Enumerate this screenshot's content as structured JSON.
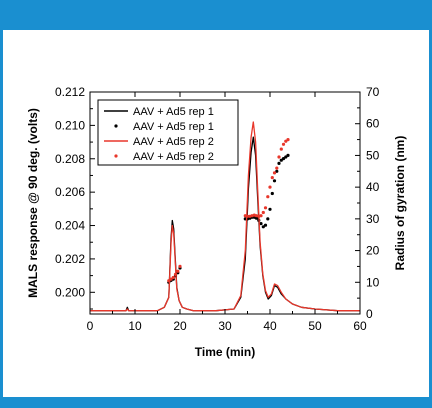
{
  "colors": {
    "frame_accent": "#1a8fd0",
    "rep1": "#000000",
    "rep2": "#e8372b"
  },
  "chart_data": {
    "type": "line",
    "xlabel": "Time (min)",
    "ylabel": "MALS response @ 90 deg. (volts)",
    "y2label": "Radius of gyration (nm)",
    "xlim": [
      0,
      60
    ],
    "ylim": [
      0.1987,
      0.212
    ],
    "y2lim": [
      0,
      70
    ],
    "xticks": [
      0,
      10,
      20,
      30,
      40,
      50,
      60
    ],
    "yticks": [
      0.2,
      0.202,
      0.204,
      0.206,
      0.208,
      0.21,
      0.212
    ],
    "ytick_labels": [
      "0.200",
      "0.202",
      "0.204",
      "0.206",
      "0.208",
      "0.210",
      "0.212"
    ],
    "y2ticks": [
      0,
      10,
      20,
      30,
      40,
      50,
      60,
      70
    ],
    "legend_position": "top-left",
    "series": [
      {
        "name": "AAV + Ad5 rep 1",
        "kind": "line",
        "axis": "left",
        "color": "#000000",
        "x": [
          0,
          5,
          8,
          8.3,
          8.6,
          10,
          15,
          16.5,
          17.5,
          18.0,
          18.3,
          18.6,
          18.9,
          19.3,
          19.8,
          20.5,
          21.5,
          23,
          28,
          32,
          33.5,
          34.5,
          35.2,
          35.8,
          36.3,
          36.8,
          37.3,
          37.8,
          38.4,
          39.0,
          39.6,
          40.3,
          41.0,
          41.7,
          42.5,
          43.5,
          45,
          47,
          50,
          55,
          60
        ],
        "y": [
          0.1989,
          0.1989,
          0.1989,
          0.1991,
          0.1989,
          0.1989,
          0.1989,
          0.1991,
          0.1997,
          0.2032,
          0.2043,
          0.2038,
          0.2022,
          0.2003,
          0.1995,
          0.1991,
          0.199,
          0.1989,
          0.1989,
          0.199,
          0.1997,
          0.202,
          0.2062,
          0.2084,
          0.2093,
          0.2082,
          0.2055,
          0.2028,
          0.201,
          0.2,
          0.1996,
          0.1998,
          0.2004,
          0.2003,
          0.1999,
          0.1996,
          0.1993,
          0.1991,
          0.199,
          0.1989,
          0.1989
        ]
      },
      {
        "name": "AAV + Ad5 rep 1",
        "kind": "scatter",
        "axis": "right",
        "color": "#000000",
        "x": [
          17.5,
          18.0,
          18.5,
          19.0,
          19.5,
          20.0,
          34.5,
          35.0,
          35.5,
          36.0,
          36.5,
          37.0,
          37.5,
          38.0,
          38.5,
          39.0,
          39.5,
          40.0,
          40.5,
          41.0,
          41.5,
          42.0,
          42.5,
          43.0,
          43.5,
          44.0
        ],
        "y": [
          10.0,
          10.6,
          11.0,
          12.0,
          13.0,
          14.5,
          30.0,
          30.0,
          30.2,
          30.5,
          30.5,
          30.2,
          29.5,
          28.5,
          27.5,
          28.0,
          30.0,
          33.0,
          38.0,
          42.0,
          45.0,
          47.5,
          48.5,
          49.0,
          49.5,
          50.0
        ]
      },
      {
        "name": "AAV + Ad5 rep 2",
        "kind": "line",
        "axis": "left",
        "color": "#e8372b",
        "x": [
          0,
          5,
          8,
          8.3,
          8.6,
          10,
          15,
          16.5,
          17.5,
          18.0,
          18.3,
          18.6,
          18.9,
          19.3,
          19.8,
          20.5,
          21.5,
          23,
          28,
          32,
          33.5,
          34.5,
          35.2,
          35.8,
          36.3,
          36.8,
          37.3,
          37.8,
          38.4,
          39.0,
          39.6,
          40.3,
          41.0,
          41.7,
          42.5,
          43.5,
          45,
          47,
          50,
          55,
          60
        ],
        "y": [
          0.1989,
          0.1989,
          0.1989,
          0.199,
          0.1989,
          0.1989,
          0.1989,
          0.1991,
          0.1997,
          0.2029,
          0.204,
          0.2035,
          0.202,
          0.2002,
          0.1995,
          0.1991,
          0.199,
          0.1989,
          0.1989,
          0.199,
          0.1998,
          0.2025,
          0.207,
          0.2093,
          0.2102,
          0.209,
          0.206,
          0.203,
          0.2011,
          0.2001,
          0.1997,
          0.1999,
          0.2005,
          0.2004,
          0.2,
          0.1996,
          0.1993,
          0.1991,
          0.199,
          0.1989,
          0.1989
        ]
      },
      {
        "name": "AAV + Ad5 rep 2",
        "kind": "scatter",
        "axis": "right",
        "color": "#e8372b",
        "x": [
          17.5,
          18.0,
          18.5,
          19.0,
          19.5,
          20.0,
          34.5,
          35.0,
          35.5,
          36.0,
          36.5,
          37.0,
          37.5,
          38.0,
          38.5,
          39.0,
          39.5,
          40.0,
          40.5,
          41.0,
          41.5,
          42.0,
          42.5,
          43.0,
          43.5,
          44.0
        ],
        "y": [
          10.5,
          11.0,
          11.5,
          12.5,
          13.5,
          15.0,
          31.0,
          30.8,
          30.8,
          31.0,
          31.2,
          31.0,
          30.8,
          31.0,
          32.0,
          33.5,
          37.0,
          40.0,
          43.0,
          44.5,
          46.0,
          49.5,
          52.0,
          53.5,
          54.5,
          55.0
        ]
      }
    ]
  }
}
